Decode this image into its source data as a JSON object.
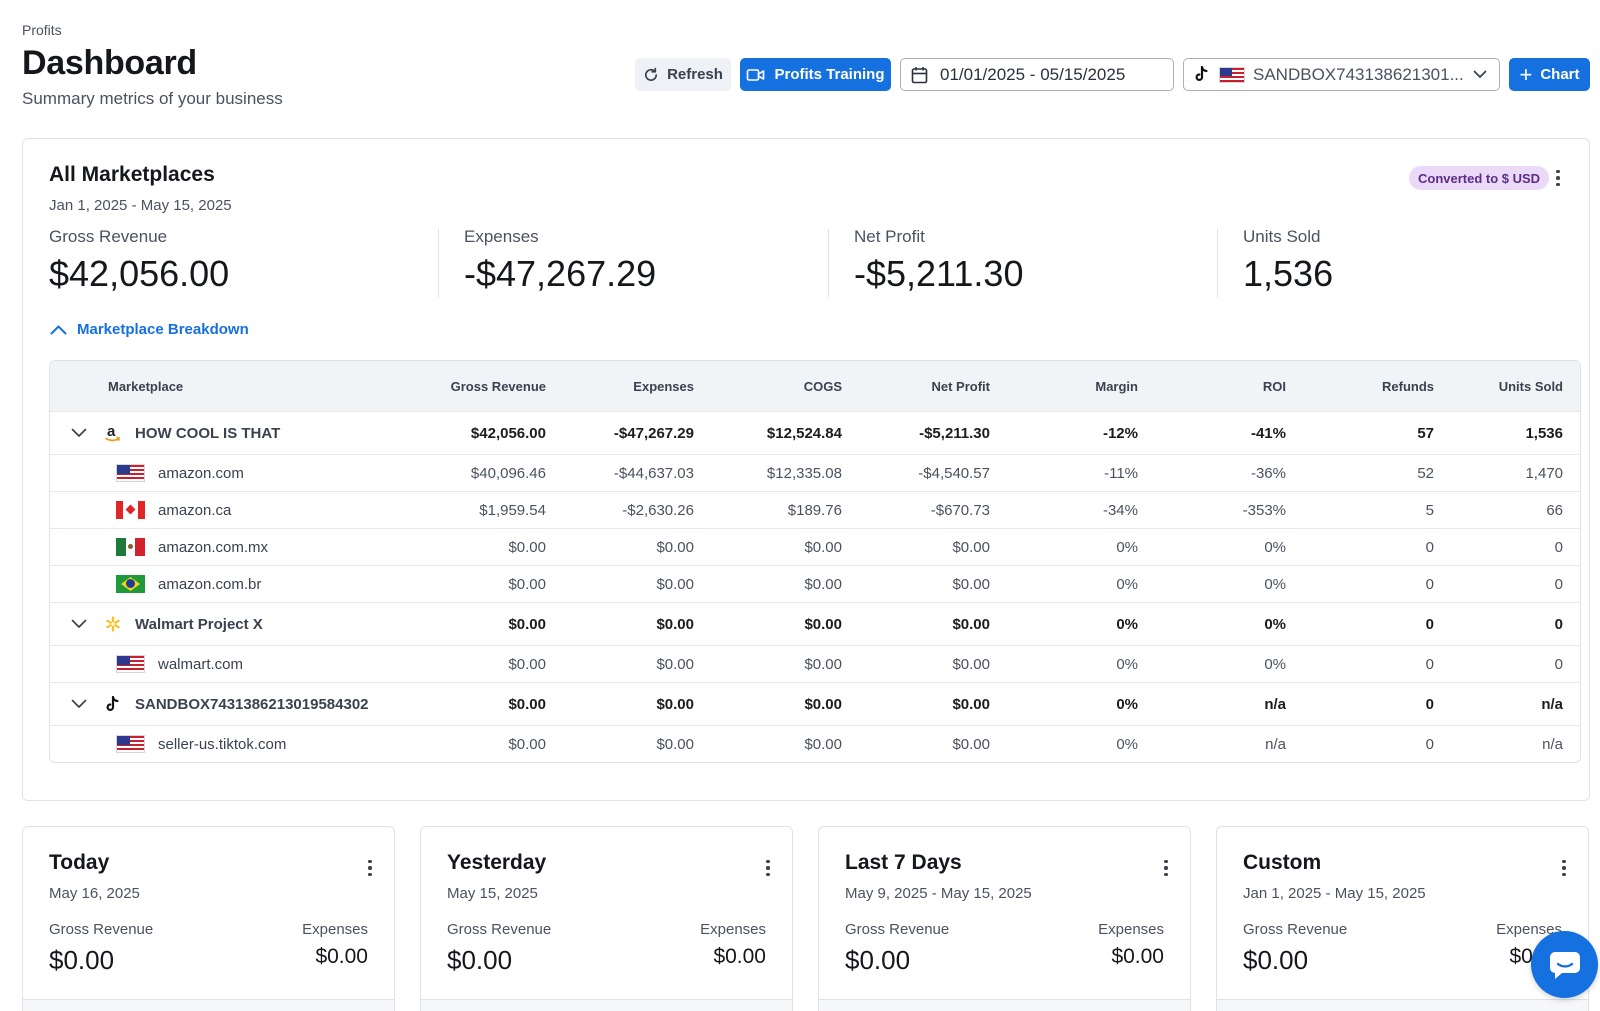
{
  "header": {
    "breadcrumb": "Profits",
    "title": "Dashboard",
    "subtitle": "Summary metrics of your business"
  },
  "toolbar": {
    "refresh_label": "Refresh",
    "training_label": "Profits Training",
    "date_range": "01/01/2025 - 05/15/2025",
    "account_selected": "SANDBOX743138621301...",
    "chart_label": "Chart"
  },
  "summary": {
    "title": "All Marketplaces",
    "date_range": "Jan 1, 2025 - May 15, 2025",
    "currency_badge": "Converted to $ USD",
    "metrics": [
      {
        "label": "Gross Revenue",
        "value": "$42,056.00"
      },
      {
        "label": "Expenses",
        "value": "-$47,267.29"
      },
      {
        "label": "Net Profit",
        "value": "-$5,211.30"
      },
      {
        "label": "Units Sold",
        "value": "1,536"
      }
    ],
    "breakdown_toggle": "Marketplace Breakdown"
  },
  "table": {
    "columns": [
      "Marketplace",
      "Gross Revenue",
      "Expenses",
      "COGS",
      "Net Profit",
      "Margin",
      "ROI",
      "Refunds",
      "Units Sold"
    ],
    "groups": [
      {
        "name": "HOW COOL IS THAT",
        "logo": "amazon-logo",
        "values": [
          "$42,056.00",
          "-$47,267.29",
          "$12,524.84",
          "-$5,211.30",
          "-12%",
          "-41%",
          "57",
          "1,536"
        ],
        "rows": [
          {
            "name": "amazon.com",
            "flag": "us",
            "values": [
              "$40,096.46",
              "-$44,637.03",
              "$12,335.08",
              "-$4,540.57",
              "-11%",
              "-36%",
              "52",
              "1,470"
            ]
          },
          {
            "name": "amazon.ca",
            "flag": "ca",
            "values": [
              "$1,959.54",
              "-$2,630.26",
              "$189.76",
              "-$670.73",
              "-34%",
              "-353%",
              "5",
              "66"
            ]
          },
          {
            "name": "amazon.com.mx",
            "flag": "mx",
            "values": [
              "$0.00",
              "$0.00",
              "$0.00",
              "$0.00",
              "0%",
              "0%",
              "0",
              "0"
            ]
          },
          {
            "name": "amazon.com.br",
            "flag": "br",
            "values": [
              "$0.00",
              "$0.00",
              "$0.00",
              "$0.00",
              "0%",
              "0%",
              "0",
              "0"
            ]
          }
        ]
      },
      {
        "name": "Walmart Project X",
        "logo": "walmart-spark-logo",
        "values": [
          "$0.00",
          "$0.00",
          "$0.00",
          "$0.00",
          "0%",
          "0%",
          "0",
          "0"
        ],
        "rows": [
          {
            "name": "walmart.com",
            "flag": "us",
            "values": [
              "$0.00",
              "$0.00",
              "$0.00",
              "$0.00",
              "0%",
              "0%",
              "0",
              "0"
            ]
          }
        ]
      },
      {
        "name": "SANDBOX7431386213019584302",
        "logo": "tiktok-logo",
        "values": [
          "$0.00",
          "$0.00",
          "$0.00",
          "$0.00",
          "0%",
          "n/a",
          "0",
          "n/a"
        ],
        "rows": [
          {
            "name": "seller-us.tiktok.com",
            "flag": "us",
            "values": [
              "$0.00",
              "$0.00",
              "$0.00",
              "$0.00",
              "0%",
              "n/a",
              "0",
              "n/a"
            ]
          }
        ]
      }
    ]
  },
  "cards": [
    {
      "title": "Today",
      "date": "May 16, 2025",
      "gross_label": "Gross Revenue",
      "gross_value": "$0.00",
      "expenses_label": "Expenses",
      "expenses_value": "$0.00"
    },
    {
      "title": "Yesterday",
      "date": "May 15, 2025",
      "gross_label": "Gross Revenue",
      "gross_value": "$0.00",
      "expenses_label": "Expenses",
      "expenses_value": "$0.00"
    },
    {
      "title": "Last 7 Days",
      "date": "May 9, 2025 - May 15, 2025",
      "gross_label": "Gross Revenue",
      "gross_value": "$0.00",
      "expenses_label": "Expenses",
      "expenses_value": "$0.00"
    },
    {
      "title": "Custom",
      "date": "Jan 1, 2025 - May 15, 2025",
      "gross_label": "Gross Revenue",
      "gross_value": "$0.00",
      "expenses_label": "Expenses",
      "expenses_value": "$0.00"
    }
  ],
  "colors": {
    "primary": "#1671e0",
    "badge_bg": "#ead9f7",
    "badge_text": "#5b2d87"
  }
}
